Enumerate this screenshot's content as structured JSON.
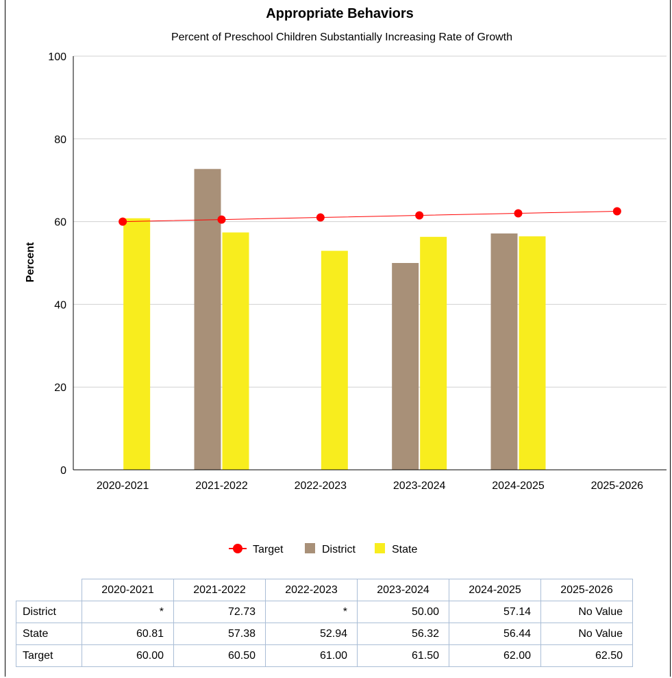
{
  "chart_data": {
    "type": "bar",
    "title": "Appropriate Behaviors",
    "subtitle": "Percent of Preschool Children Substantially Increasing Rate of Growth",
    "xlabel": "",
    "ylabel": "Percent",
    "ylim": [
      0,
      100
    ],
    "yticks": [
      0,
      20,
      40,
      60,
      80,
      100
    ],
    "grid": true,
    "legend_position": "bottom",
    "categories": [
      "2020-2021",
      "2021-2022",
      "2022-2023",
      "2023-2024",
      "2024-2025",
      "2025-2026"
    ],
    "series": [
      {
        "name": "Target",
        "kind": "line",
        "color": "#ff0000",
        "values": [
          60.0,
          60.5,
          61.0,
          61.5,
          62.0,
          62.5
        ]
      },
      {
        "name": "District",
        "kind": "bar",
        "color": "#a89078",
        "values": [
          null,
          72.73,
          null,
          50.0,
          57.14,
          null
        ]
      },
      {
        "name": "State",
        "kind": "bar",
        "color": "#f8ed1e",
        "values": [
          60.81,
          57.38,
          52.94,
          56.32,
          56.44,
          null
        ]
      }
    ]
  },
  "table": {
    "columns": [
      "2020-2021",
      "2021-2022",
      "2022-2023",
      "2023-2024",
      "2024-2025",
      "2025-2026"
    ],
    "rows": [
      {
        "label": "District",
        "cells": [
          "*",
          "72.73",
          "*",
          "50.00",
          "57.14",
          "No Value"
        ]
      },
      {
        "label": "State",
        "cells": [
          "60.81",
          "57.38",
          "52.94",
          "56.32",
          "56.44",
          "No Value"
        ]
      },
      {
        "label": "Target",
        "cells": [
          "60.00",
          "60.50",
          "61.00",
          "61.50",
          "62.00",
          "62.50"
        ]
      }
    ]
  }
}
